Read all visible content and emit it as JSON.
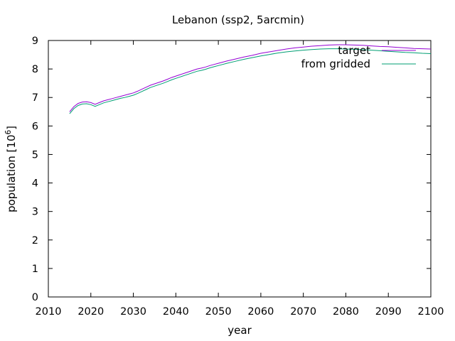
{
  "chart_data": {
    "type": "line",
    "title": "Lebanon (ssp2, 5arcmin)",
    "xlabel": "year",
    "ylabel_main": "population [10",
    "ylabel_exp": "6",
    "ylabel_close": "]",
    "xlim": [
      2010,
      2100
    ],
    "ylim": [
      0,
      9
    ],
    "xticks": [
      "2010",
      "2020",
      "2030",
      "2040",
      "2050",
      "2060",
      "2070",
      "2080",
      "2090",
      "2100"
    ],
    "yticks": [
      "0",
      "1",
      "2",
      "3",
      "4",
      "5",
      "6",
      "7",
      "8",
      "9"
    ],
    "grid": false,
    "legend_position": "top-right",
    "series": [
      {
        "name": "target",
        "color": "#9400d3",
        "x": [
          2015,
          2016,
          2017,
          2018,
          2019,
          2020,
          2021,
          2022,
          2023,
          2024,
          2025,
          2026,
          2027,
          2028,
          2029,
          2030,
          2031,
          2032,
          2033,
          2034,
          2035,
          2036,
          2037,
          2038,
          2039,
          2040,
          2041,
          2042,
          2043,
          2044,
          2045,
          2046,
          2047,
          2048,
          2049,
          2050,
          2052,
          2054,
          2056,
          2058,
          2060,
          2062,
          2064,
          2066,
          2068,
          2070,
          2072,
          2074,
          2076,
          2078,
          2080,
          2082,
          2084,
          2086,
          2088,
          2090,
          2092,
          2094,
          2096,
          2098,
          2100
        ],
        "values": [
          6.5,
          6.68,
          6.79,
          6.84,
          6.85,
          6.82,
          6.76,
          6.82,
          6.88,
          6.92,
          6.96,
          7.0,
          7.04,
          7.08,
          7.12,
          7.16,
          7.22,
          7.29,
          7.36,
          7.43,
          7.48,
          7.53,
          7.58,
          7.64,
          7.7,
          7.75,
          7.8,
          7.85,
          7.9,
          7.95,
          8.0,
          8.03,
          8.07,
          8.12,
          8.16,
          8.2,
          8.28,
          8.35,
          8.42,
          8.48,
          8.55,
          8.6,
          8.65,
          8.7,
          8.74,
          8.77,
          8.8,
          8.82,
          8.84,
          8.85,
          8.85,
          8.84,
          8.83,
          8.81,
          8.79,
          8.78,
          8.76,
          8.74,
          8.72,
          8.71,
          8.7
        ]
      },
      {
        "name": "from gridded",
        "color": "#009e73",
        "x": [
          2015,
          2016,
          2017,
          2018,
          2019,
          2020,
          2021,
          2022,
          2023,
          2024,
          2025,
          2026,
          2027,
          2028,
          2029,
          2030,
          2031,
          2032,
          2033,
          2034,
          2035,
          2036,
          2037,
          2038,
          2039,
          2040,
          2041,
          2042,
          2043,
          2044,
          2045,
          2046,
          2047,
          2048,
          2049,
          2050,
          2052,
          2054,
          2056,
          2058,
          2060,
          2062,
          2064,
          2066,
          2068,
          2070,
          2072,
          2074,
          2076,
          2078,
          2080,
          2082,
          2084,
          2086,
          2088,
          2090,
          2092,
          2094,
          2096,
          2098,
          2100
        ],
        "values": [
          6.43,
          6.61,
          6.72,
          6.77,
          6.78,
          6.75,
          6.69,
          6.75,
          6.81,
          6.85,
          6.89,
          6.93,
          6.97,
          7.0,
          7.04,
          7.08,
          7.14,
          7.21,
          7.28,
          7.35,
          7.4,
          7.45,
          7.5,
          7.56,
          7.62,
          7.67,
          7.72,
          7.77,
          7.82,
          7.87,
          7.92,
          7.95,
          7.99,
          8.04,
          8.08,
          8.12,
          8.2,
          8.27,
          8.34,
          8.4,
          8.46,
          8.51,
          8.56,
          8.6,
          8.63,
          8.66,
          8.68,
          8.7,
          8.71,
          8.71,
          8.7,
          8.69,
          8.68,
          8.66,
          8.64,
          8.62,
          8.6,
          8.58,
          8.57,
          8.55,
          8.54
        ]
      }
    ]
  }
}
